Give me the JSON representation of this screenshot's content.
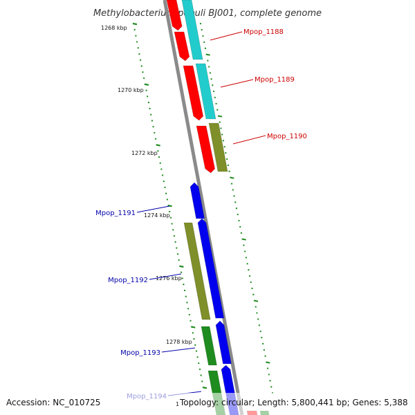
{
  "title": "Methylobacterium populi BJ001, complete genome",
  "footer": {
    "accession": "Accession: NC_010725",
    "topology": "Topology: circular; Length: 5,800,441 bp; Genes: 5,388",
    "start_marker": "1"
  },
  "colors": {
    "red": "#ff0000",
    "cyan": "#22cccc",
    "olive": "#7f8f2a",
    "blue": "#0000ee",
    "green": "#1e8c1e",
    "backbone": "#888888",
    "tick_inner": "#1f8a1f",
    "tick_outer": "#1f8a1f",
    "label_red": "#cc0000",
    "label_blue": "#0000aa"
  },
  "scale_labels": [
    "1268 kbp",
    "1270 kbp",
    "1272 kbp",
    "1274 kbp",
    "1276 kbp",
    "1278 kbp"
  ],
  "genes": [
    {
      "name": "Mpop_1188",
      "side": "right"
    },
    {
      "name": "Mpop_1189",
      "side": "right"
    },
    {
      "name": "Mpop_1190",
      "side": "right"
    },
    {
      "name": "Mpop_1191",
      "side": "left"
    },
    {
      "name": "Mpop_1192",
      "side": "left"
    },
    {
      "name": "Mpop_1193",
      "side": "left"
    },
    {
      "name": "Mpop_1194",
      "side": "left"
    }
  ]
}
